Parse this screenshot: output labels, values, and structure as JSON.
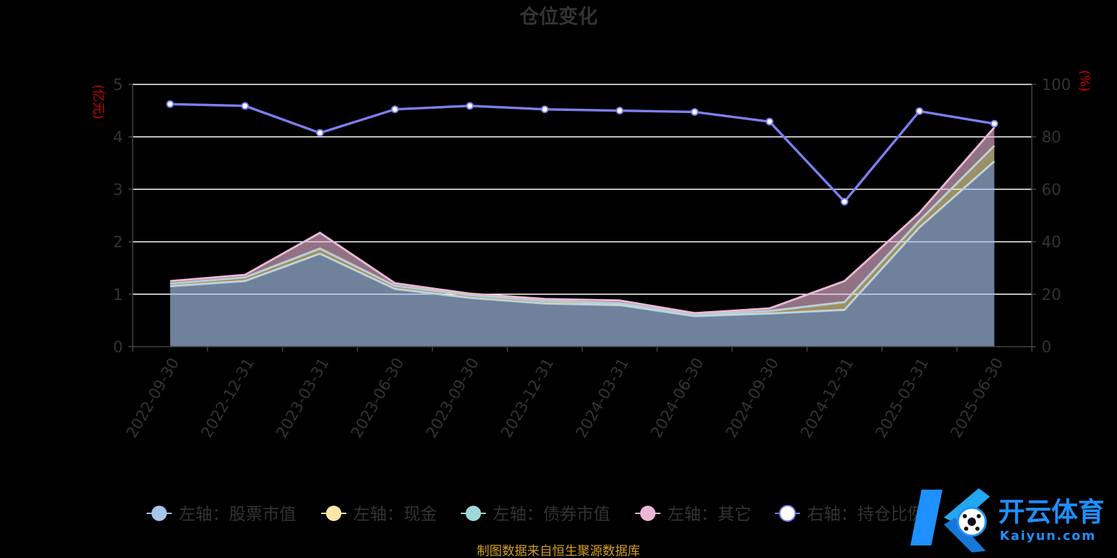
{
  "chart_data": {
    "type": "area",
    "title": "仓位变化",
    "left_axis_name": "(亿元)",
    "right_axis_name": "(%)",
    "categories": [
      "2022-09-30",
      "2022-12-31",
      "2023-03-31",
      "2023-06-30",
      "2023-09-30",
      "2023-12-31",
      "2024-03-31",
      "2024-06-30",
      "2024-09-30",
      "2024-12-31",
      "2025-03-31",
      "2025-06-30"
    ],
    "ylim_left": [
      0,
      5
    ],
    "yticks_left": [
      "0",
      "1",
      "2",
      "3",
      "4",
      "5"
    ],
    "ylim_right": [
      0,
      100
    ],
    "yticks_right": [
      "0",
      "20",
      "40",
      "60",
      "80",
      "100"
    ],
    "series": [
      {
        "name": "左轴：股票市值",
        "axis": "left",
        "color": "#a9c4ec",
        "values": [
          1.15,
          1.25,
          1.77,
          1.1,
          0.93,
          0.82,
          0.79,
          0.58,
          0.63,
          0.7,
          2.27,
          3.53
        ]
      },
      {
        "name": "左轴：现金",
        "axis": "left",
        "color": "#fbe8a6",
        "values": [
          0.05,
          0.07,
          0.1,
          0.06,
          0.05,
          0.05,
          0.04,
          0.03,
          0.05,
          0.15,
          0.13,
          0.3
        ]
      },
      {
        "name": "左轴：债券市值",
        "axis": "left",
        "color": "#9fd8d8",
        "values": [
          0.0,
          0.0,
          0.0,
          0.0,
          0.0,
          0.0,
          0.0,
          0.0,
          0.0,
          0.0,
          0.0,
          0.0
        ]
      },
      {
        "name": "左轴：其它",
        "axis": "left",
        "color": "#eab8d6",
        "values": [
          0.05,
          0.05,
          0.3,
          0.05,
          0.03,
          0.04,
          0.05,
          0.03,
          0.05,
          0.4,
          0.15,
          0.35
        ]
      },
      {
        "name": "右轴：持仓比例",
        "axis": "right",
        "color": "#7b7ff0",
        "values": [
          92.5,
          91.8,
          81.5,
          90.5,
          91.8,
          90.5,
          90.0,
          89.5,
          85.8,
          55.3,
          89.8,
          85.0
        ]
      }
    ],
    "grid": true,
    "legend_position": "bottom",
    "source": "制图数据来自恒生聚源数据库"
  },
  "watermark": {
    "brand": "开云体育",
    "domain": "Kaiyun.com",
    "colors": {
      "blue": "#1e90ff",
      "cyan": "#22d3ee"
    }
  }
}
